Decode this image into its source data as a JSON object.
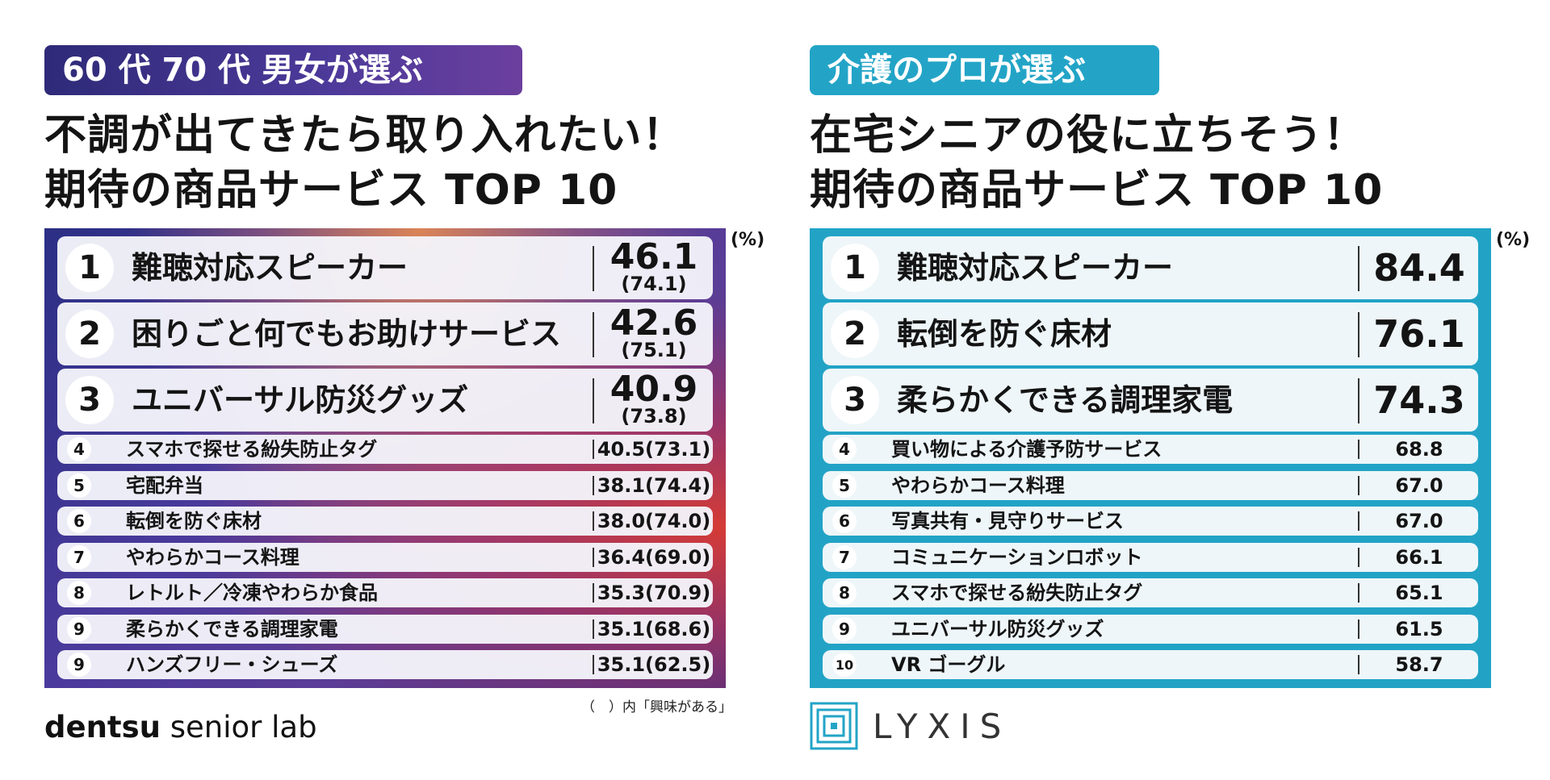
{
  "left": {
    "tag": "60 代 70 代 男女が選ぶ",
    "title_line1": "不調が出てきたら取り入れたい！",
    "title_line2": "期待の商品サービス  TOP 10",
    "unit": "(%)",
    "note": "（　）内「興味がある」",
    "logo_bold": "dentsu",
    "logo_light": " senior lab",
    "rows": [
      {
        "rank": "1",
        "name": "難聴対応スピーカー",
        "value": "46.1",
        "paren": "(74.1)"
      },
      {
        "rank": "2",
        "name": "困りごと何でもお助けサービス",
        "value": "42.6",
        "paren": "(75.1)"
      },
      {
        "rank": "3",
        "name": "ユニバーサル防災グッズ",
        "value": "40.9",
        "paren": "(73.8)"
      },
      {
        "rank": "4",
        "name": "スマホで探せる紛失防止タグ",
        "value": "40.5(73.1)"
      },
      {
        "rank": "5",
        "name": "宅配弁当",
        "value": "38.1(74.4)"
      },
      {
        "rank": "6",
        "name": "転倒を防ぐ床材",
        "value": "38.0(74.0)"
      },
      {
        "rank": "7",
        "name": "やわらかコース料理",
        "value": "36.4(69.0)"
      },
      {
        "rank": "8",
        "name": "レトルト／冷凍やわらか食品",
        "value": "35.3(70.9)"
      },
      {
        "rank": "9",
        "name": "柔らかくできる調理家電",
        "value": "35.1(68.6)"
      },
      {
        "rank": "9",
        "name": "ハンズフリー・シューズ",
        "value": "35.1(62.5)"
      }
    ]
  },
  "right": {
    "tag": "介護のプロが選ぶ",
    "title_line1": "在宅シニアの役に立ちそう！",
    "title_line2": "期待の商品サービス  TOP 10",
    "unit": "(%)",
    "logo_text": "LYXIS",
    "rows": [
      {
        "rank": "1",
        "name": "難聴対応スピーカー",
        "value": "84.4"
      },
      {
        "rank": "2",
        "name": "転倒を防ぐ床材",
        "value": "76.1"
      },
      {
        "rank": "3",
        "name": "柔らかくできる調理家電",
        "value": "74.3"
      },
      {
        "rank": "4",
        "name": "買い物による介護予防サービス",
        "value": "68.8"
      },
      {
        "rank": "5",
        "name": "やわらかコース料理",
        "value": "67.0"
      },
      {
        "rank": "6",
        "name": "写真共有・見守りサービス",
        "value": "67.0"
      },
      {
        "rank": "7",
        "name": "コミュニケーションロボット",
        "value": "66.1"
      },
      {
        "rank": "8",
        "name": "スマホで探せる紛失防止タグ",
        "value": "65.1"
      },
      {
        "rank": "9",
        "name": "ユニバーサル防災グッズ",
        "value": "61.5"
      },
      {
        "rank": "10",
        "name": "VR ゴーグル",
        "value": "58.7"
      }
    ]
  },
  "chart_data": [
    {
      "type": "table",
      "title": "不調が出てきたら取り入れたい！期待の商品サービス TOP 10",
      "subtitle": "60 代 70 代 男女が選ぶ",
      "unit": "%",
      "columns": [
        "rank",
        "name",
        "value",
        "interested"
      ],
      "categories": [
        "難聴対応スピーカー",
        "困りごと何でもお助けサービス",
        "ユニバーサル防災グッズ",
        "スマホで探せる紛失防止タグ",
        "宅配弁当",
        "転倒を防ぐ床材",
        "やわらかコース料理",
        "レトルト／冷凍やわらか食品",
        "柔らかくできる調理家電",
        "ハンズフリー・シューズ"
      ],
      "series": [
        {
          "name": "expect",
          "values": [
            46.1,
            42.6,
            40.9,
            40.5,
            38.1,
            38.0,
            36.4,
            35.3,
            35.1,
            35.1
          ]
        },
        {
          "name": "興味がある",
          "values": [
            74.1,
            75.1,
            73.8,
            73.1,
            74.4,
            74.0,
            69.0,
            70.9,
            68.6,
            62.5
          ]
        }
      ]
    },
    {
      "type": "table",
      "title": "在宅シニアの役に立ちそう！期待の商品サービス TOP 10",
      "subtitle": "介護のプロが選ぶ",
      "unit": "%",
      "categories": [
        "難聴対応スピーカー",
        "転倒を防ぐ床材",
        "柔らかくできる調理家電",
        "買い物による介護予防サービス",
        "やわらかコース料理",
        "写真共有・見守りサービス",
        "コミュニケーションロボット",
        "スマホで探せる紛失防止タグ",
        "ユニバーサル防災グッズ",
        "VR ゴーグル"
      ],
      "values": [
        84.4,
        76.1,
        74.3,
        68.8,
        67.0,
        67.0,
        66.1,
        65.1,
        61.5,
        58.7
      ]
    }
  ]
}
